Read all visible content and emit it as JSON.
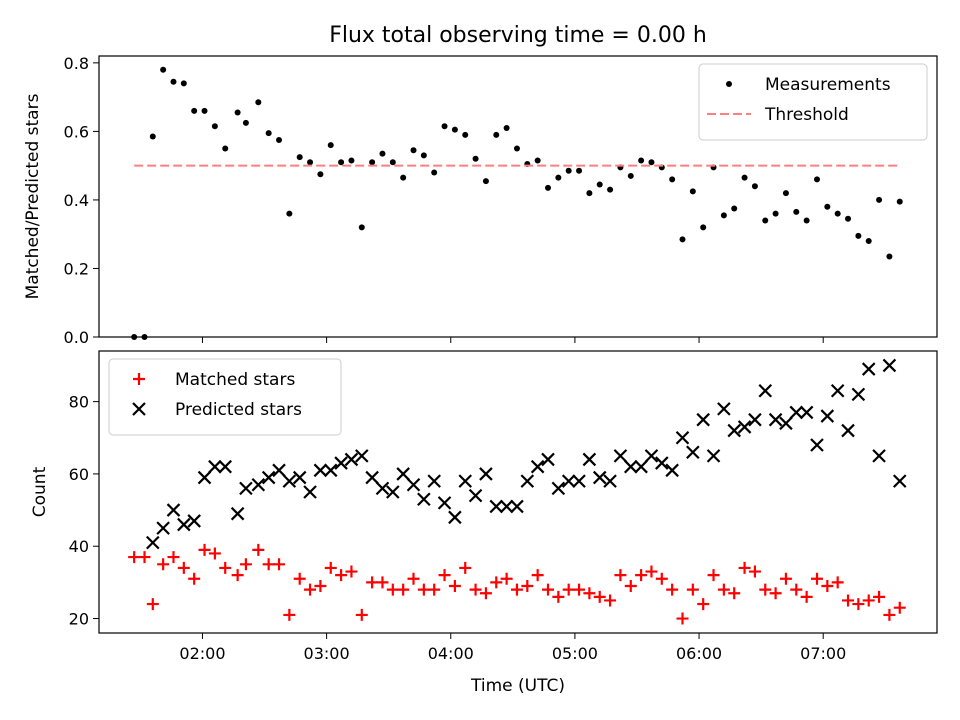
{
  "figure_title": "Flux total observing time = 0.00 h",
  "chart_data": [
    {
      "type": "scatter",
      "title": "Flux total observing time = 0.00 h",
      "xlabel": "",
      "ylabel": "Matched/Predicted stars",
      "x_unit": "hours UTC",
      "xlim": [
        "01:10",
        "07:55"
      ],
      "ylim": [
        0,
        0.82
      ],
      "yticks": [
        0.0,
        0.2,
        0.4,
        0.6,
        0.8
      ],
      "ytick_labels": [
        "0.0",
        "0.2",
        "0.4",
        "0.6",
        "0.8"
      ],
      "xticks": [
        "02:00",
        "03:00",
        "04:00",
        "05:00",
        "06:00",
        "07:00"
      ],
      "grid": false,
      "legend": "top-right",
      "series": [
        {
          "name": "Measurements",
          "kind": "scatter",
          "marker": "dot",
          "color": "#000000",
          "points": [
            [
              "01:27",
              0.0
            ],
            [
              "01:32",
              0.0
            ],
            [
              "01:36",
              0.585
            ],
            [
              "01:41",
              0.78
            ],
            [
              "01:46",
              0.745
            ],
            [
              "01:51",
              0.74
            ],
            [
              "01:56",
              0.66
            ],
            [
              "02:01",
              0.66
            ],
            [
              "02:06",
              0.615
            ],
            [
              "02:11",
              0.55
            ],
            [
              "02:17",
              0.655
            ],
            [
              "02:21",
              0.625
            ],
            [
              "02:27",
              0.685
            ],
            [
              "02:32",
              0.595
            ],
            [
              "02:37",
              0.575
            ],
            [
              "02:42",
              0.36
            ],
            [
              "02:47",
              0.525
            ],
            [
              "02:52",
              0.51
            ],
            [
              "02:57",
              0.475
            ],
            [
              "03:02",
              0.56
            ],
            [
              "03:07",
              0.51
            ],
            [
              "03:12",
              0.515
            ],
            [
              "03:17",
              0.32
            ],
            [
              "03:22",
              0.51
            ],
            [
              "03:27",
              0.535
            ],
            [
              "03:32",
              0.51
            ],
            [
              "03:37",
              0.465
            ],
            [
              "03:42",
              0.545
            ],
            [
              "03:47",
              0.53
            ],
            [
              "03:52",
              0.48
            ],
            [
              "03:57",
              0.615
            ],
            [
              "04:02",
              0.605
            ],
            [
              "04:07",
              0.59
            ],
            [
              "04:12",
              0.52
            ],
            [
              "04:17",
              0.455
            ],
            [
              "04:22",
              0.59
            ],
            [
              "04:27",
              0.61
            ],
            [
              "04:32",
              0.55
            ],
            [
              "04:37",
              0.505
            ],
            [
              "04:42",
              0.515
            ],
            [
              "04:47",
              0.435
            ],
            [
              "04:52",
              0.465
            ],
            [
              "04:57",
              0.485
            ],
            [
              "05:02",
              0.485
            ],
            [
              "05:07",
              0.42
            ],
            [
              "05:12",
              0.445
            ],
            [
              "05:17",
              0.43
            ],
            [
              "05:22",
              0.495
            ],
            [
              "05:27",
              0.47
            ],
            [
              "05:32",
              0.515
            ],
            [
              "05:37",
              0.51
            ],
            [
              "05:42",
              0.495
            ],
            [
              "05:47",
              0.46
            ],
            [
              "05:52",
              0.285
            ],
            [
              "05:57",
              0.425
            ],
            [
              "06:02",
              0.32
            ],
            [
              "06:07",
              0.495
            ],
            [
              "06:12",
              0.355
            ],
            [
              "06:17",
              0.375
            ],
            [
              "06:22",
              0.465
            ],
            [
              "06:27",
              0.44
            ],
            [
              "06:32",
              0.34
            ],
            [
              "06:37",
              0.36
            ],
            [
              "06:42",
              0.42
            ],
            [
              "06:47",
              0.365
            ],
            [
              "06:52",
              0.34
            ],
            [
              "06:57",
              0.46
            ],
            [
              "07:02",
              0.38
            ],
            [
              "07:07",
              0.36
            ],
            [
              "07:12",
              0.345
            ],
            [
              "07:17",
              0.295
            ],
            [
              "07:22",
              0.28
            ],
            [
              "07:27",
              0.4
            ],
            [
              "07:32",
              0.235
            ],
            [
              "07:37",
              0.395
            ]
          ]
        },
        {
          "name": "Threshold",
          "kind": "line",
          "style": "dashed",
          "color": "#ff7f7f",
          "points": [
            [
              "01:27",
              0.5
            ],
            [
              "07:37",
              0.5
            ]
          ]
        }
      ]
    },
    {
      "type": "scatter",
      "title": "",
      "xlabel": "Time (UTC)",
      "ylabel": "Count",
      "x_unit": "hours UTC",
      "xlim": [
        "01:10",
        "07:55"
      ],
      "ylim": [
        16,
        94
      ],
      "yticks": [
        20,
        40,
        60,
        80
      ],
      "ytick_labels": [
        "20",
        "40",
        "60",
        "80"
      ],
      "xticks": [
        "02:00",
        "03:00",
        "04:00",
        "05:00",
        "06:00",
        "07:00"
      ],
      "grid": false,
      "legend": "top-left",
      "series": [
        {
          "name": "Matched stars",
          "kind": "scatter",
          "marker": "plus",
          "color": "#ff0000",
          "points": [
            [
              "01:27",
              37
            ],
            [
              "01:32",
              37
            ],
            [
              "01:36",
              24
            ],
            [
              "01:41",
              35
            ],
            [
              "01:46",
              37
            ],
            [
              "01:51",
              34
            ],
            [
              "01:56",
              31
            ],
            [
              "02:01",
              39
            ],
            [
              "02:06",
              38
            ],
            [
              "02:11",
              34
            ],
            [
              "02:17",
              32
            ],
            [
              "02:21",
              35
            ],
            [
              "02:27",
              39
            ],
            [
              "02:32",
              35
            ],
            [
              "02:37",
              35
            ],
            [
              "02:42",
              21
            ],
            [
              "02:47",
              31
            ],
            [
              "02:52",
              28
            ],
            [
              "02:57",
              29
            ],
            [
              "03:02",
              34
            ],
            [
              "03:07",
              32
            ],
            [
              "03:12",
              33
            ],
            [
              "03:17",
              21
            ],
            [
              "03:22",
              30
            ],
            [
              "03:27",
              30
            ],
            [
              "03:32",
              28
            ],
            [
              "03:37",
              28
            ],
            [
              "03:42",
              31
            ],
            [
              "03:47",
              28
            ],
            [
              "03:52",
              28
            ],
            [
              "03:57",
              32
            ],
            [
              "04:02",
              29
            ],
            [
              "04:07",
              34
            ],
            [
              "04:12",
              28
            ],
            [
              "04:17",
              27
            ],
            [
              "04:22",
              30
            ],
            [
              "04:27",
              31
            ],
            [
              "04:32",
              28
            ],
            [
              "04:37",
              29
            ],
            [
              "04:42",
              32
            ],
            [
              "04:47",
              28
            ],
            [
              "04:52",
              26
            ],
            [
              "04:57",
              28
            ],
            [
              "05:02",
              28
            ],
            [
              "05:07",
              27
            ],
            [
              "05:12",
              26
            ],
            [
              "05:17",
              25
            ],
            [
              "05:22",
              32
            ],
            [
              "05:27",
              29
            ],
            [
              "05:32",
              32
            ],
            [
              "05:37",
              33
            ],
            [
              "05:42",
              31
            ],
            [
              "05:47",
              28
            ],
            [
              "05:52",
              20
            ],
            [
              "05:57",
              28
            ],
            [
              "06:02",
              24
            ],
            [
              "06:07",
              32
            ],
            [
              "06:12",
              28
            ],
            [
              "06:17",
              27
            ],
            [
              "06:22",
              34
            ],
            [
              "06:27",
              33
            ],
            [
              "06:32",
              28
            ],
            [
              "06:37",
              27
            ],
            [
              "06:42",
              31
            ],
            [
              "06:47",
              28
            ],
            [
              "06:52",
              26
            ],
            [
              "06:57",
              31
            ],
            [
              "07:02",
              29
            ],
            [
              "07:07",
              30
            ],
            [
              "07:12",
              25
            ],
            [
              "07:17",
              24
            ],
            [
              "07:22",
              25
            ],
            [
              "07:27",
              26
            ],
            [
              "07:32",
              21
            ],
            [
              "07:37",
              23
            ]
          ]
        },
        {
          "name": "Predicted stars",
          "kind": "scatter",
          "marker": "x",
          "color": "#000000",
          "points": [
            [
              "01:36",
              41
            ],
            [
              "01:41",
              45
            ],
            [
              "01:46",
              50
            ],
            [
              "01:51",
              46
            ],
            [
              "01:56",
              47
            ],
            [
              "02:01",
              59
            ],
            [
              "02:06",
              62
            ],
            [
              "02:11",
              62
            ],
            [
              "02:17",
              49
            ],
            [
              "02:21",
              56
            ],
            [
              "02:27",
              57
            ],
            [
              "02:32",
              59
            ],
            [
              "02:37",
              61
            ],
            [
              "02:42",
              58
            ],
            [
              "02:47",
              59
            ],
            [
              "02:52",
              55
            ],
            [
              "02:57",
              61
            ],
            [
              "03:02",
              61
            ],
            [
              "03:07",
              63
            ],
            [
              "03:12",
              64
            ],
            [
              "03:17",
              65
            ],
            [
              "03:22",
              59
            ],
            [
              "03:27",
              56
            ],
            [
              "03:32",
              55
            ],
            [
              "03:37",
              60
            ],
            [
              "03:42",
              57
            ],
            [
              "03:47",
              53
            ],
            [
              "03:52",
              58
            ],
            [
              "03:57",
              52
            ],
            [
              "04:02",
              48
            ],
            [
              "04:07",
              58
            ],
            [
              "04:12",
              54
            ],
            [
              "04:17",
              60
            ],
            [
              "04:22",
              51
            ],
            [
              "04:27",
              51
            ],
            [
              "04:32",
              51
            ],
            [
              "04:37",
              58
            ],
            [
              "04:42",
              62
            ],
            [
              "04:47",
              64
            ],
            [
              "04:52",
              56
            ],
            [
              "04:57",
              58
            ],
            [
              "05:02",
              58
            ],
            [
              "05:07",
              64
            ],
            [
              "05:12",
              59
            ],
            [
              "05:17",
              58
            ],
            [
              "05:22",
              65
            ],
            [
              "05:27",
              62
            ],
            [
              "05:32",
              62
            ],
            [
              "05:37",
              65
            ],
            [
              "05:42",
              63
            ],
            [
              "05:47",
              61
            ],
            [
              "05:52",
              70
            ],
            [
              "05:57",
              66
            ],
            [
              "06:02",
              75
            ],
            [
              "06:07",
              65
            ],
            [
              "06:12",
              78
            ],
            [
              "06:17",
              72
            ],
            [
              "06:22",
              73
            ],
            [
              "06:27",
              75
            ],
            [
              "06:32",
              83
            ],
            [
              "06:37",
              75
            ],
            [
              "06:42",
              74
            ],
            [
              "06:47",
              77
            ],
            [
              "06:52",
              77
            ],
            [
              "06:57",
              68
            ],
            [
              "07:02",
              76
            ],
            [
              "07:07",
              83
            ],
            [
              "07:12",
              72
            ],
            [
              "07:17",
              82
            ],
            [
              "07:22",
              89
            ],
            [
              "07:27",
              65
            ],
            [
              "07:32",
              90
            ],
            [
              "07:37",
              58
            ]
          ]
        }
      ]
    }
  ]
}
